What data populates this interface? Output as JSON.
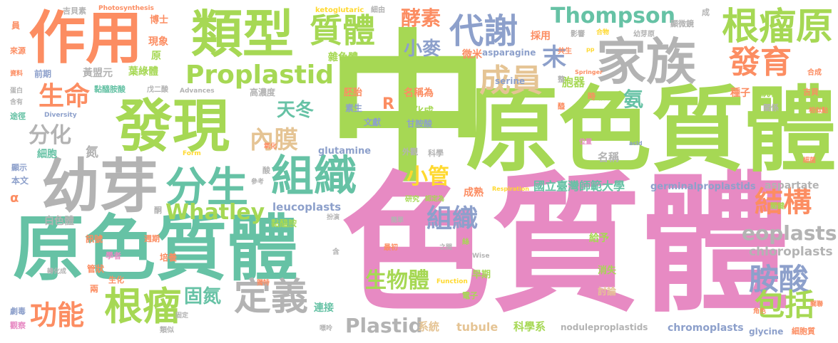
{
  "colors": {
    "green": "#a6d854",
    "pink": "#e78ac3",
    "teal": "#66c2a5",
    "orange": "#fc8d62",
    "blue": "#8da0cb",
    "yellow": "#ffd92f",
    "tan": "#e5c494",
    "gray": "#b3b3b3"
  },
  "words": [
    {
      "id": "w1",
      "text": "中",
      "color": "green"
    },
    {
      "id": "w2",
      "text": "色質體",
      "color": "pink"
    },
    {
      "id": "w3",
      "text": "原色質體",
      "color": "green"
    },
    {
      "id": "w4",
      "text": "原色質體",
      "color": "teal"
    },
    {
      "id": "w5",
      "text": "幼芽",
      "color": "gray"
    },
    {
      "id": "w6",
      "text": "發現",
      "color": "green"
    },
    {
      "id": "w7",
      "text": "作用",
      "color": "orange"
    },
    {
      "id": "w8",
      "text": "類型",
      "color": "green"
    },
    {
      "id": "w9",
      "text": "家族",
      "color": "gray"
    },
    {
      "id": "w10",
      "text": "根瘤原",
      "color": "green"
    },
    {
      "id": "w11",
      "text": "組織",
      "color": "teal"
    },
    {
      "id": "w12",
      "text": "分生",
      "color": "teal"
    },
    {
      "id": "w13",
      "text": "代謝",
      "color": "blue"
    },
    {
      "id": "w14",
      "text": "Proplastid",
      "color": "green"
    },
    {
      "id": "w15",
      "text": "發育",
      "color": "orange"
    },
    {
      "id": "w16",
      "text": "成員",
      "color": "tan"
    },
    {
      "id": "w17",
      "text": "質體",
      "color": "green"
    },
    {
      "id": "w18",
      "text": "Thompson",
      "color": "teal"
    },
    {
      "id": "w19",
      "text": "根瘤",
      "color": "green"
    },
    {
      "id": "w20",
      "text": "定義",
      "color": "gray"
    },
    {
      "id": "w21",
      "text": "功能",
      "color": "orange"
    },
    {
      "id": "w22",
      "text": "生命",
      "color": "orange"
    },
    {
      "id": "w23",
      "text": "結構",
      "color": "orange"
    },
    {
      "id": "w24",
      "text": "胺酸",
      "color": "blue"
    },
    {
      "id": "w25",
      "text": "包括",
      "color": "green"
    },
    {
      "id": "w26",
      "text": "eoplasts",
      "color": "gray"
    },
    {
      "id": "w27",
      "text": "Whatley",
      "color": "green"
    },
    {
      "id": "w28",
      "text": "內膜",
      "color": "tan"
    },
    {
      "id": "w29",
      "text": "分化",
      "color": "gray"
    },
    {
      "id": "w30",
      "text": "酵素",
      "color": "orange"
    },
    {
      "id": "w31",
      "text": "小管",
      "color": "yellow"
    },
    {
      "id": "w32",
      "text": "組織",
      "color": "blue"
    },
    {
      "id": "w33",
      "text": "天冬",
      "color": "teal"
    },
    {
      "id": "w34",
      "text": "小麥",
      "color": "blue"
    },
    {
      "id": "w35",
      "text": "固氮",
      "color": "teal"
    },
    {
      "id": "w36",
      "text": "生物體",
      "color": "green"
    },
    {
      "id": "w37",
      "text": "Plastid",
      "color": "gray"
    },
    {
      "id": "w38",
      "text": "末",
      "color": "blue"
    },
    {
      "id": "w39",
      "text": "氨",
      "color": "teal"
    },
    {
      "id": "w40",
      "text": "R",
      "color": "orange"
    },
    {
      "id": "w41",
      "text": "leucoplasts",
      "color": "blue"
    },
    {
      "id": "w42",
      "text": "chloroplasts",
      "color": "gray"
    },
    {
      "id": "w43",
      "text": "aspartate",
      "color": "gray"
    },
    {
      "id": "w44",
      "text": "國立臺灣師範大學",
      "color": "teal"
    },
    {
      "id": "w45",
      "text": "germinalproplastids",
      "color": "blue"
    },
    {
      "id": "w46",
      "text": "chromoplasts",
      "color": "blue"
    },
    {
      "id": "w47",
      "text": "noduleproplastids",
      "color": "gray"
    },
    {
      "id": "w48",
      "text": "glycine",
      "color": "blue"
    },
    {
      "id": "w49",
      "text": "細胞質",
      "color": "orange"
    },
    {
      "id": "w50",
      "text": "tubule",
      "color": "tan"
    },
    {
      "id": "w51",
      "text": "科學系",
      "color": "green"
    },
    {
      "id": "w52",
      "text": "系統",
      "color": "tan"
    },
    {
      "id": "w53",
      "text": "連接",
      "color": "teal"
    },
    {
      "id": "w54",
      "text": "glutamine",
      "color": "blue"
    },
    {
      "id": "w55",
      "text": "serine",
      "color": "blue"
    },
    {
      "id": "w56",
      "text": "asparagine",
      "color": "blue"
    },
    {
      "id": "w57",
      "text": "ketoglutaric",
      "color": "yellow"
    },
    {
      "id": "w58",
      "text": "Photosynthesis",
      "color": "orange"
    },
    {
      "id": "w59",
      "text": "Advances",
      "color": "gray"
    },
    {
      "id": "w60",
      "text": "Diversity",
      "color": "blue"
    },
    {
      "id": "w61",
      "text": "Form",
      "color": "yellow"
    },
    {
      "id": "w62",
      "text": "Respiration",
      "color": "yellow"
    },
    {
      "id": "w63",
      "text": "Function",
      "color": "yellow"
    },
    {
      "id": "w64",
      "text": "Wise",
      "color": "gray"
    },
    {
      "id": "w65",
      "text": "Springer",
      "color": "orange"
    },
    {
      "id": "w66",
      "text": "acid",
      "color": "blue"
    },
    {
      "id": "w67",
      "text": "pp",
      "color": "yellow"
    },
    {
      "id": "w68",
      "text": "吉貝素",
      "color": "gray"
    },
    {
      "id": "w69",
      "text": "博士",
      "color": "orange"
    },
    {
      "id": "w70",
      "text": "現象",
      "color": "orange"
    },
    {
      "id": "w71",
      "text": "原",
      "color": "green"
    },
    {
      "id": "w72",
      "text": "黃盟元",
      "color": "gray"
    },
    {
      "id": "w73",
      "text": "葉綠體",
      "color": "green"
    },
    {
      "id": "w74",
      "text": "黏醯胺酸",
      "color": "teal"
    },
    {
      "id": "w75",
      "text": "戊二酸",
      "color": "gray"
    },
    {
      "id": "w76",
      "text": "細胞",
      "color": "teal"
    },
    {
      "id": "w77",
      "text": "氮",
      "color": "gray"
    },
    {
      "id": "w78",
      "text": "α",
      "color": "orange"
    },
    {
      "id": "w79",
      "text": "白色體",
      "color": "gray"
    },
    {
      "id": "w80",
      "text": "訊號",
      "color": "orange"
    },
    {
      "id": "w81",
      "text": "管狀",
      "color": "orange"
    },
    {
      "id": "w82",
      "text": "兩",
      "color": "orange"
    },
    {
      "id": "w83",
      "text": "雜色體",
      "color": "green"
    },
    {
      "id": "w84",
      "text": "名稱為",
      "color": "orange"
    },
    {
      "id": "w85",
      "text": "分化成",
      "color": "green"
    },
    {
      "id": "w86",
      "text": "甘胺酸",
      "color": "blue"
    },
    {
      "id": "w87",
      "text": "文獻",
      "color": "blue"
    },
    {
      "id": "w88",
      "text": "胚胎",
      "color": "orange"
    },
    {
      "id": "w89",
      "text": "素生",
      "color": "blue"
    },
    {
      "id": "w90",
      "text": "微米",
      "color": "orange"
    },
    {
      "id": "w91",
      "text": "採用",
      "color": "orange"
    },
    {
      "id": "w92",
      "text": "胞器",
      "color": "green"
    },
    {
      "id": "w93",
      "text": "分裂成",
      "color": "green"
    },
    {
      "id": "w94",
      "text": "統稱",
      "color": "green"
    },
    {
      "id": "w95",
      "text": "種子",
      "color": "orange"
    },
    {
      "id": "w96",
      "text": "吉貝",
      "color": "orange"
    },
    {
      "id": "w97",
      "text": "影響",
      "color": "gray"
    },
    {
      "id": "w98",
      "text": "幼芽原",
      "color": "gray"
    },
    {
      "id": "w99",
      "text": "顯微鏡",
      "color": "gray"
    },
    {
      "id": "w100",
      "text": "共生",
      "color": "orange"
    },
    {
      "id": "w101",
      "text": "合成",
      "color": "orange"
    },
    {
      "id": "w102",
      "text": "相似點",
      "color": "orange"
    },
    {
      "id": "w103",
      "text": "關係",
      "color": "gray"
    },
    {
      "id": "w104",
      "text": "名稱",
      "color": "gray"
    },
    {
      "id": "w105",
      "text": "成熟",
      "color": "orange"
    },
    {
      "id": "w106",
      "text": "早期",
      "color": "green"
    },
    {
      "id": "w107",
      "text": "給予",
      "color": "green"
    },
    {
      "id": "w108",
      "text": "消失",
      "color": "green"
    },
    {
      "id": "w109",
      "text": "討論",
      "color": "tan"
    },
    {
      "id": "w110",
      "text": "電子",
      "color": "green"
    },
    {
      "id": "w111",
      "text": "科學",
      "color": "gray"
    },
    {
      "id": "w112",
      "text": "外觀",
      "color": "gray"
    },
    {
      "id": "w113",
      "text": "研究",
      "color": "green"
    },
    {
      "id": "w114",
      "text": "黏醯胺",
      "color": "green"
    },
    {
      "id": "w115",
      "text": "最初",
      "color": "orange"
    },
    {
      "id": "w116",
      "text": "培養",
      "color": "orange"
    },
    {
      "id": "w117",
      "text": "週期",
      "color": "orange"
    },
    {
      "id": "w118",
      "text": "學者",
      "color": "pink"
    },
    {
      "id": "w119",
      "text": "生化",
      "color": "orange"
    },
    {
      "id": "w120",
      "text": "劇毒",
      "color": "blue"
    },
    {
      "id": "w121",
      "text": "觀察",
      "color": "pink"
    },
    {
      "id": "w122",
      "text": "類似",
      "color": "gray"
    },
    {
      "id": "w123",
      "text": "前期",
      "color": "blue"
    },
    {
      "id": "w124",
      "text": "來源",
      "color": "orange"
    },
    {
      "id": "w125",
      "text": "本文",
      "color": "blue"
    },
    {
      "id": "w126",
      "text": "顯示",
      "color": "blue"
    },
    {
      "id": "w127",
      "text": "途徑",
      "color": "teal"
    },
    {
      "id": "w128",
      "text": "含有",
      "color": "gray"
    },
    {
      "id": "w129",
      "text": "蛋白",
      "color": "gray"
    },
    {
      "id": "w130",
      "text": "資料",
      "color": "orange"
    },
    {
      "id": "w131",
      "text": "員",
      "color": "orange"
    },
    {
      "id": "w132",
      "text": "高濃度",
      "color": "gray"
    },
    {
      "id": "w133",
      "text": "參考",
      "color": "gray"
    },
    {
      "id": "w134",
      "text": "認定為",
      "color": "green"
    },
    {
      "id": "w135",
      "text": "之間",
      "color": "gray"
    },
    {
      "id": "w136",
      "text": "位置",
      "color": "pink"
    },
    {
      "id": "w137",
      "text": "細菌",
      "color": "orange"
    },
    {
      "id": "w138",
      "text": "關聯",
      "color": "orange"
    },
    {
      "id": "w139",
      "text": "角色",
      "color": "orange"
    },
    {
      "id": "w140",
      "text": "關鍵",
      "color": "green"
    },
    {
      "id": "w141",
      "text": "簡單",
      "color": "gray"
    },
    {
      "id": "w142",
      "text": "扮演",
      "color": "gray"
    },
    {
      "id": "w143",
      "text": "轉化成",
      "color": "gray"
    },
    {
      "id": "w144",
      "text": "獨特",
      "color": "orange"
    },
    {
      "id": "w145",
      "text": "嘌呤",
      "color": "gray"
    },
    {
      "id": "w146",
      "text": "絲",
      "color": "green"
    },
    {
      "id": "w147",
      "text": "酮",
      "color": "gray"
    },
    {
      "id": "w148",
      "text": "酸",
      "color": "gray"
    },
    {
      "id": "w149",
      "text": "氧化",
      "color": "orange"
    },
    {
      "id": "w150",
      "text": "成",
      "color": "gray"
    },
    {
      "id": "w151",
      "text": "細由",
      "color": "gray"
    },
    {
      "id": "w152",
      "text": "合物",
      "color": "yellow"
    },
    {
      "id": "w153",
      "text": "時",
      "color": "orange"
    },
    {
      "id": "w154",
      "text": "整",
      "color": "gray"
    },
    {
      "id": "w155",
      "text": "醯",
      "color": "orange"
    },
    {
      "id": "w156",
      "text": "含",
      "color": "gray"
    },
    {
      "id": "w157",
      "text": "固定",
      "color": "gray"
    }
  ]
}
